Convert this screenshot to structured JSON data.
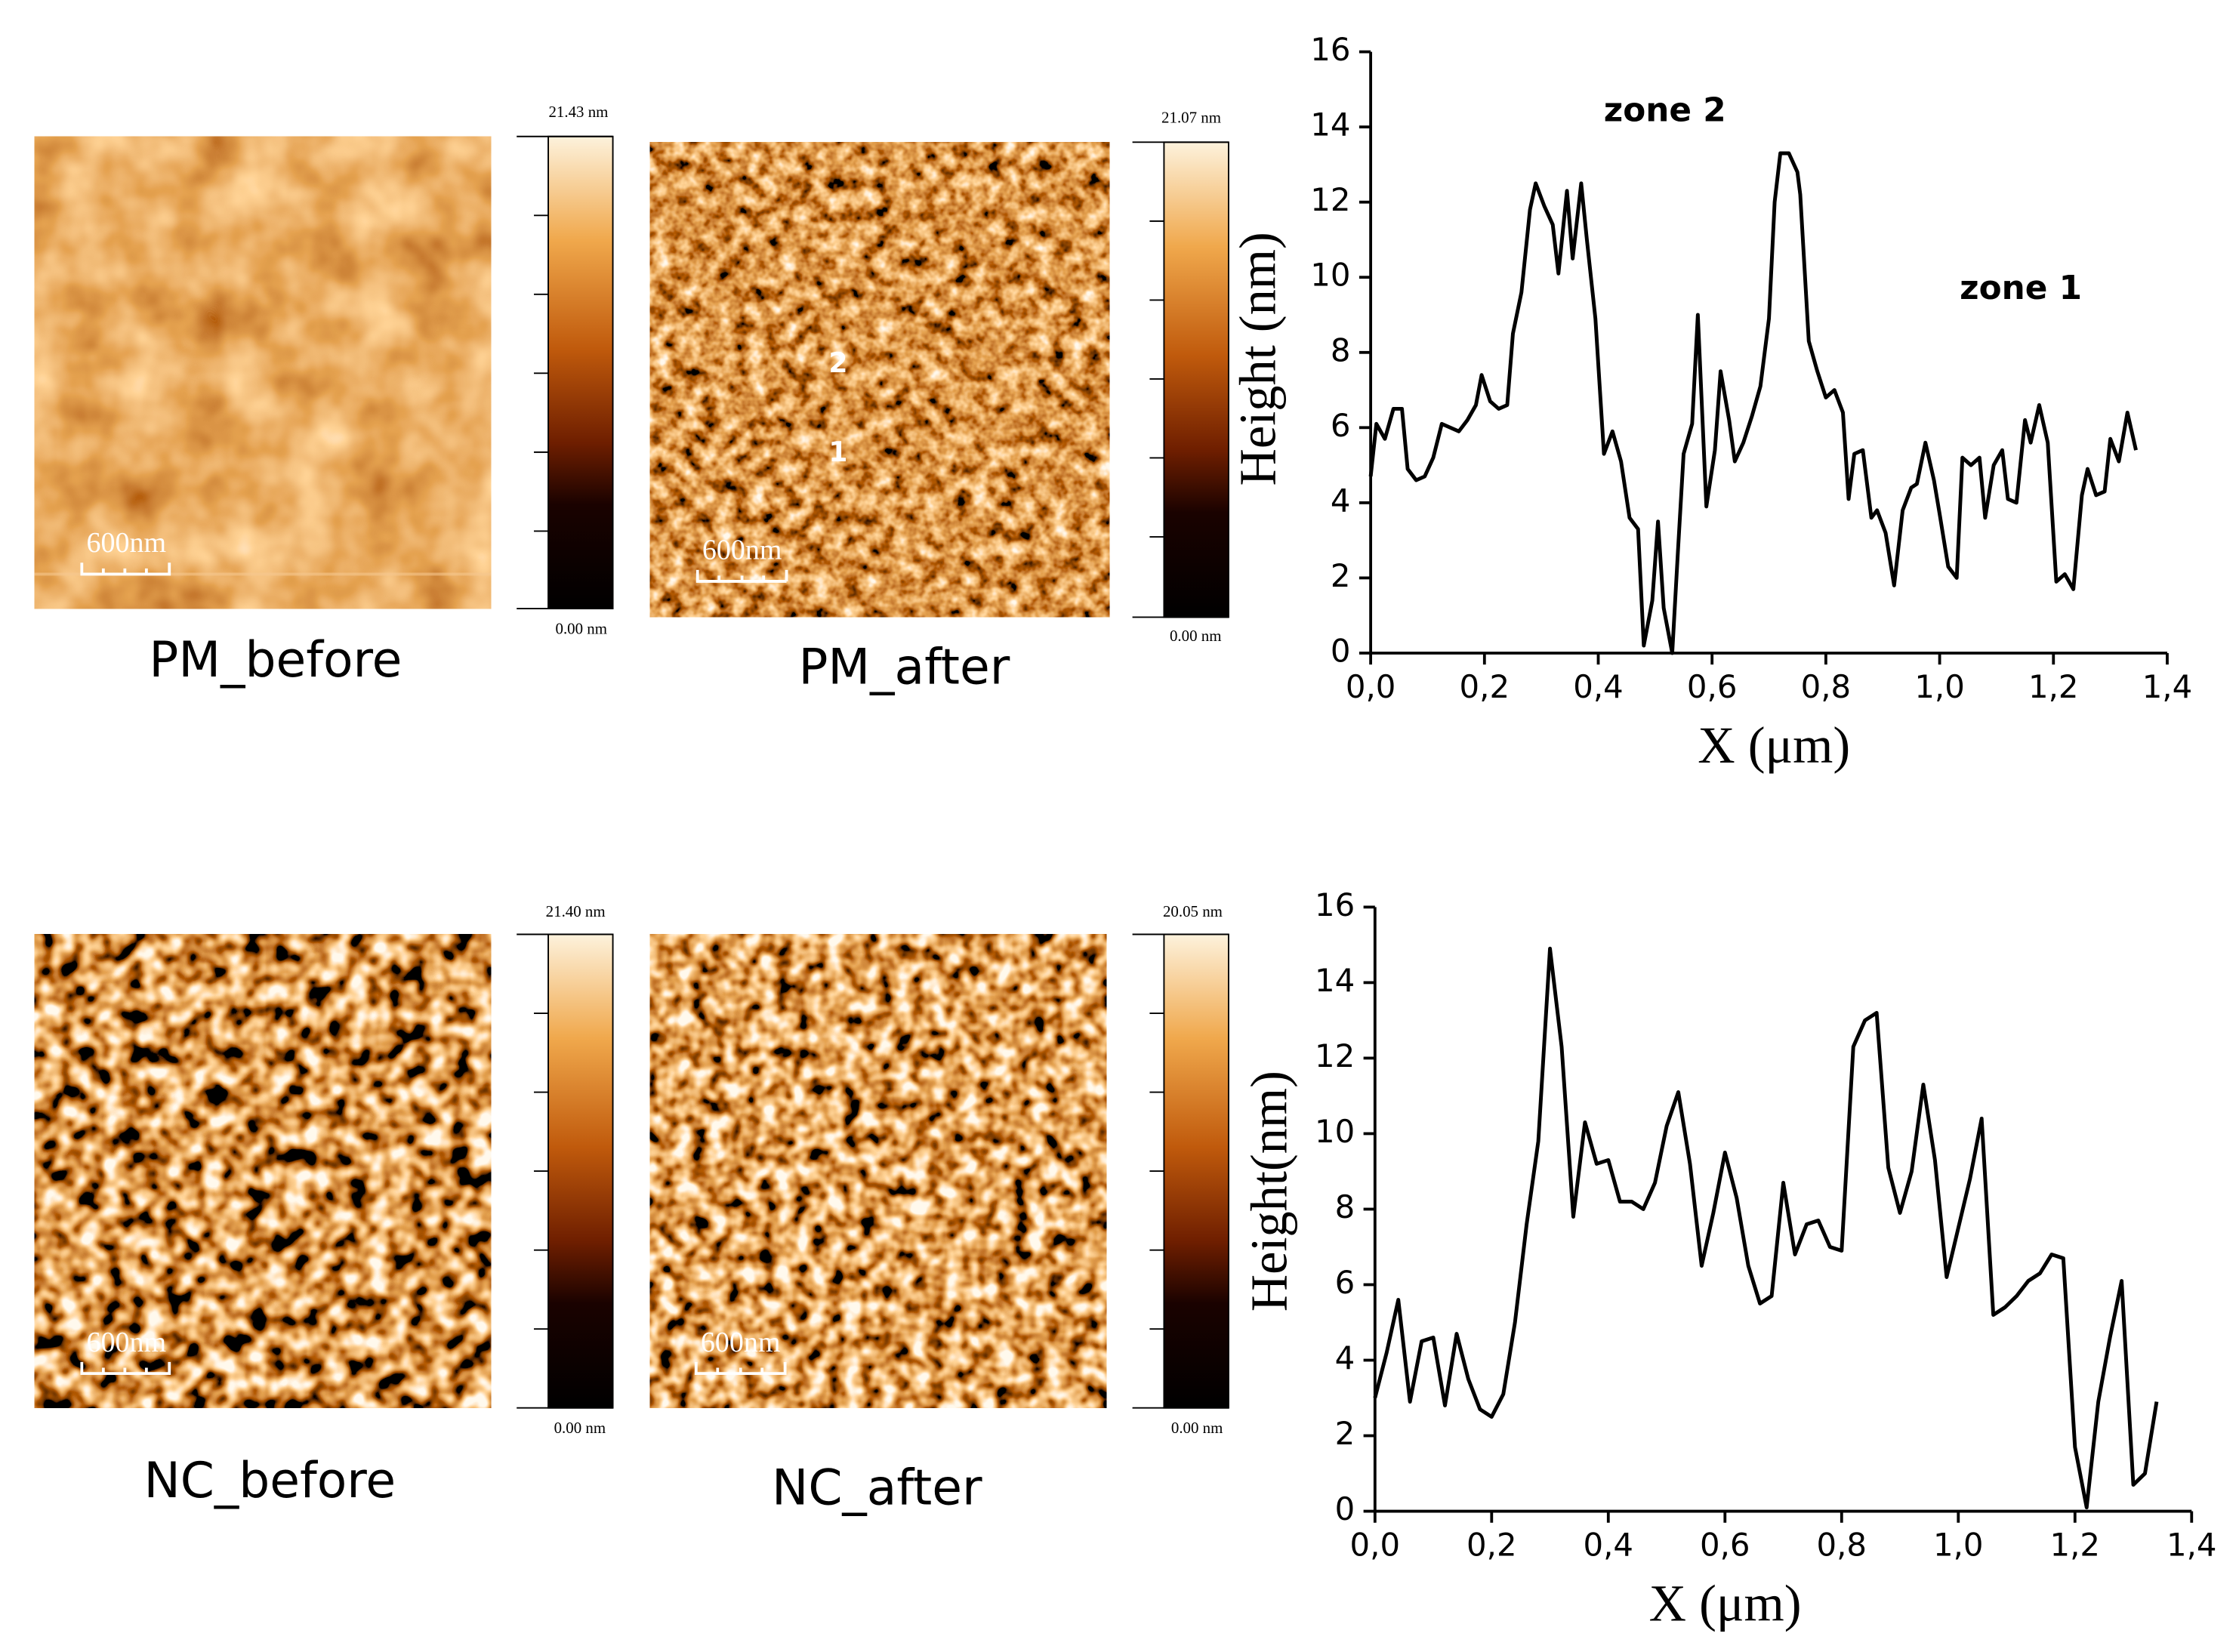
{
  "panels": [
    {
      "label": "PM_before",
      "scale_bar": "600nm",
      "colorbar_max": "21.43 nm",
      "colorbar_min": "0.00 nm"
    },
    {
      "label": "PM_after",
      "scale_bar": "600nm",
      "colorbar_max": "21.07 nm",
      "colorbar_min": "0.00 nm",
      "markers": [
        "2",
        "1"
      ]
    },
    {
      "label": "NC_before",
      "scale_bar": "600nm",
      "colorbar_max": "21.40 nm",
      "colorbar_min": "0.00 nm"
    },
    {
      "label": "NC_after",
      "scale_bar": "600nm",
      "colorbar_max": "20.05 nm",
      "colorbar_min": "0.00 nm"
    }
  ],
  "chart_data": [
    {
      "type": "line",
      "xlabel": "X (μm)",
      "ylabel": "Height (nm)",
      "color": "#000000",
      "annotations": [
        "zone 2",
        "zone 1"
      ],
      "xlim": [
        0,
        1.4
      ],
      "ylim": [
        0,
        16
      ],
      "xticks": [
        {
          "value": 0,
          "label": "0,0"
        },
        {
          "value": 0.2,
          "label": "0,2"
        },
        {
          "value": 0.4,
          "label": "0,4"
        },
        {
          "value": 0.6,
          "label": "0,6"
        },
        {
          "value": 0.8,
          "label": "0,8"
        },
        {
          "value": 1.0,
          "label": "1,0"
        },
        {
          "value": 1.2,
          "label": "1,2"
        },
        {
          "value": 1.4,
          "label": "1,4"
        }
      ],
      "yticks": [
        0,
        2,
        4,
        6,
        8,
        10,
        12,
        14,
        16
      ],
      "x": [
        0,
        0.01,
        0.025,
        0.04,
        0.055,
        0.065,
        0.08,
        0.095,
        0.11,
        0.125,
        0.14,
        0.155,
        0.17,
        0.185,
        0.195,
        0.21,
        0.225,
        0.24,
        0.25,
        0.265,
        0.28,
        0.29,
        0.305,
        0.32,
        0.33,
        0.345,
        0.355,
        0.37,
        0.38,
        0.395,
        0.41,
        0.425,
        0.44,
        0.455,
        0.47,
        0.48,
        0.495,
        0.505,
        0.515,
        0.53,
        0.54,
        0.55,
        0.565,
        0.575,
        0.59,
        0.605,
        0.615,
        0.63,
        0.64,
        0.655,
        0.67,
        0.685,
        0.7,
        0.71,
        0.72,
        0.735,
        0.75,
        0.755,
        0.77,
        0.785,
        0.8,
        0.815,
        0.83,
        0.84,
        0.85,
        0.865,
        0.88,
        0.89,
        0.905,
        0.92,
        0.935,
        0.95,
        0.96,
        0.975,
        0.99,
        1.0,
        1.015,
        1.03,
        1.04,
        1.055,
        1.07,
        1.08,
        1.095,
        1.11,
        1.12,
        1.135,
        1.15,
        1.16,
        1.175,
        1.19,
        1.205,
        1.22,
        1.235,
        1.25,
        1.26,
        1.275,
        1.29,
        1.3,
        1.315,
        1.33,
        1.345
      ],
      "values": [
        4.7,
        6.1,
        5.7,
        6.5,
        6.5,
        4.9,
        4.6,
        4.7,
        5.2,
        6.1,
        6.0,
        5.9,
        6.2,
        6.6,
        7.4,
        6.7,
        6.5,
        6.6,
        8.5,
        9.6,
        11.8,
        12.5,
        11.9,
        11.4,
        10.1,
        12.3,
        10.5,
        12.5,
        11.0,
        8.9,
        5.3,
        5.9,
        5.1,
        3.6,
        3.3,
        0.2,
        1.4,
        3.5,
        1.2,
        0.0,
        2.7,
        5.3,
        6.1,
        9.0,
        3.9,
        5.4,
        7.5,
        6.2,
        5.1,
        5.6,
        6.3,
        7.1,
        8.9,
        12.0,
        13.3,
        13.3,
        12.8,
        12.2,
        8.3,
        7.5,
        6.8,
        7.0,
        6.4,
        4.1,
        5.3,
        5.4,
        3.6,
        3.8,
        3.2,
        1.8,
        3.8,
        4.4,
        4.5,
        5.6,
        4.6,
        3.7,
        2.3,
        2.0,
        5.2,
        5.0,
        5.2,
        3.6,
        5.0,
        5.4,
        4.1,
        4.0,
        6.2,
        5.6,
        6.6,
        5.6,
        1.9,
        2.1,
        1.7,
        4.2,
        4.9,
        4.2,
        4.3,
        5.7,
        5.1,
        6.4,
        5.4
      ]
    },
    {
      "type": "line",
      "xlabel": "X (μm)",
      "ylabel": "Height(nm)",
      "color": "#000000",
      "xlim": [
        0,
        1.4
      ],
      "ylim": [
        0,
        16
      ],
      "xticks": [
        {
          "value": 0,
          "label": "0,0"
        },
        {
          "value": 0.2,
          "label": "0,2"
        },
        {
          "value": 0.4,
          "label": "0,4"
        },
        {
          "value": 0.6,
          "label": "0,6"
        },
        {
          "value": 0.8,
          "label": "0,8"
        },
        {
          "value": 1.0,
          "label": "1,0"
        },
        {
          "value": 1.2,
          "label": "1,2"
        },
        {
          "value": 1.4,
          "label": "1,4"
        }
      ],
      "yticks": [
        0,
        2,
        4,
        6,
        8,
        10,
        12,
        14,
        16
      ],
      "x": [
        0,
        0.02,
        0.04,
        0.06,
        0.08,
        0.1,
        0.12,
        0.14,
        0.16,
        0.18,
        0.2,
        0.22,
        0.24,
        0.26,
        0.28,
        0.3,
        0.32,
        0.34,
        0.36,
        0.38,
        0.4,
        0.42,
        0.44,
        0.46,
        0.48,
        0.5,
        0.52,
        0.54,
        0.56,
        0.58,
        0.6,
        0.62,
        0.64,
        0.66,
        0.68,
        0.7,
        0.72,
        0.74,
        0.76,
        0.78,
        0.8,
        0.82,
        0.84,
        0.86,
        0.88,
        0.9,
        0.92,
        0.94,
        0.96,
        0.98,
        1.0,
        1.02,
        1.04,
        1.06,
        1.08,
        1.1,
        1.12,
        1.14,
        1.16,
        1.18,
        1.2,
        1.22,
        1.24,
        1.26,
        1.28,
        1.3,
        1.32,
        1.34
      ],
      "values": [
        3.0,
        4.2,
        5.6,
        2.9,
        4.5,
        4.6,
        2.8,
        4.7,
        3.5,
        2.7,
        2.5,
        3.1,
        5.0,
        7.6,
        9.8,
        14.9,
        12.3,
        7.8,
        10.3,
        9.2,
        9.3,
        8.2,
        8.2,
        8.0,
        8.7,
        10.2,
        11.1,
        9.2,
        6.5,
        7.9,
        9.5,
        8.3,
        6.5,
        5.5,
        5.7,
        8.7,
        6.8,
        7.6,
        7.7,
        7.0,
        6.9,
        12.3,
        13.0,
        13.2,
        9.1,
        7.9,
        9.0,
        11.3,
        9.3,
        6.2,
        7.5,
        8.8,
        10.4,
        5.2,
        5.4,
        5.7,
        6.1,
        6.3,
        6.8,
        6.7,
        1.7,
        0.1,
        2.9,
        4.6,
        6.1,
        0.7,
        1.0,
        2.9
      ]
    }
  ]
}
